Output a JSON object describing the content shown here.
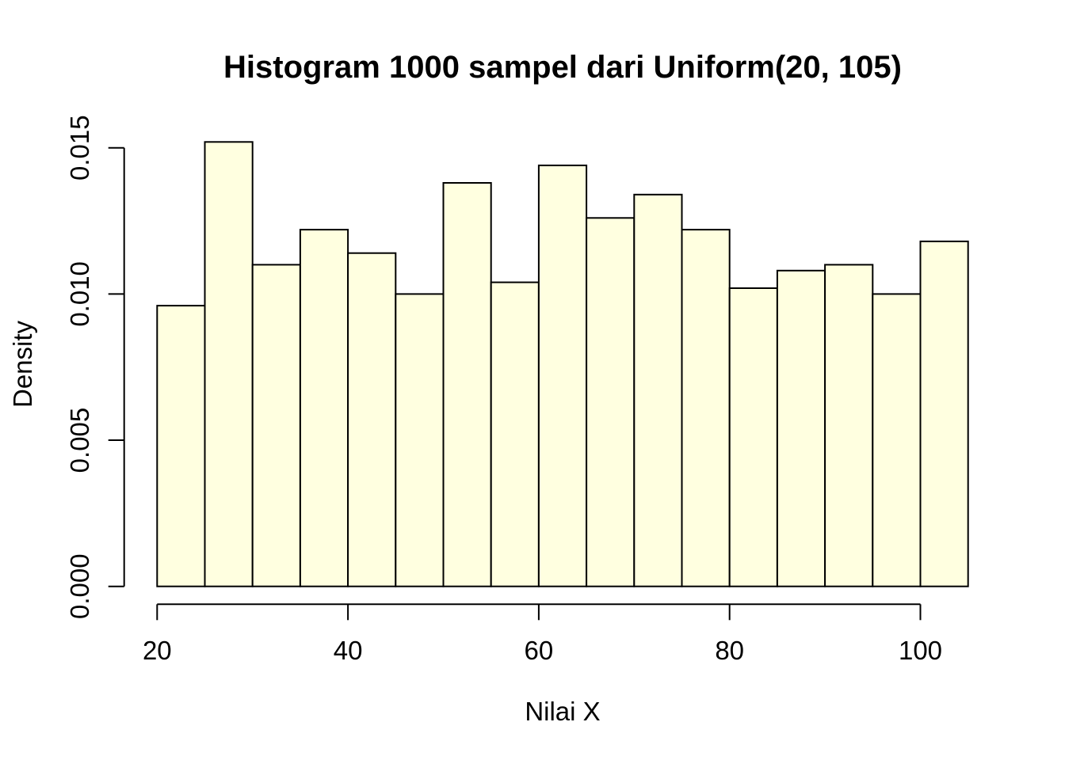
{
  "chart_data": {
    "type": "bar",
    "subtype": "histogram",
    "title": "Histogram 1000 sampel dari Uniform(20, 105)",
    "xlabel": "Nilai X",
    "ylabel": "Density",
    "sample_size": 1000,
    "distribution": "Uniform(20, 105)",
    "bin_width": 5,
    "bin_edges": [
      20,
      25,
      30,
      35,
      40,
      45,
      50,
      55,
      60,
      65,
      70,
      75,
      80,
      85,
      90,
      95,
      100,
      105
    ],
    "densities": [
      0.0096,
      0.0152,
      0.011,
      0.0122,
      0.0114,
      0.01,
      0.0138,
      0.0104,
      0.0144,
      0.0126,
      0.0134,
      0.0122,
      0.0102,
      0.0108,
      0.011,
      0.01,
      0.0118
    ],
    "counts": [
      48,
      76,
      55,
      61,
      57,
      50,
      69,
      52,
      72,
      63,
      67,
      61,
      51,
      54,
      55,
      50,
      59
    ],
    "xlim": [
      20,
      105
    ],
    "ylim": [
      0,
      0.015
    ],
    "x_ticks": [
      "20",
      "40",
      "60",
      "80",
      "100"
    ],
    "x_tick_values": [
      20,
      40,
      60,
      80,
      100
    ],
    "y_ticks": [
      "0.000",
      "0.005",
      "0.010",
      "0.015"
    ],
    "y_tick_values": [
      0,
      0.005,
      0.01,
      0.015
    ],
    "grid": false,
    "legend_position": "none",
    "colors": {
      "bar_fill": "#FFFFE0",
      "bar_stroke": "#000000",
      "axis": "#000000",
      "text": "#000000",
      "background": "#FFFFFF"
    }
  }
}
